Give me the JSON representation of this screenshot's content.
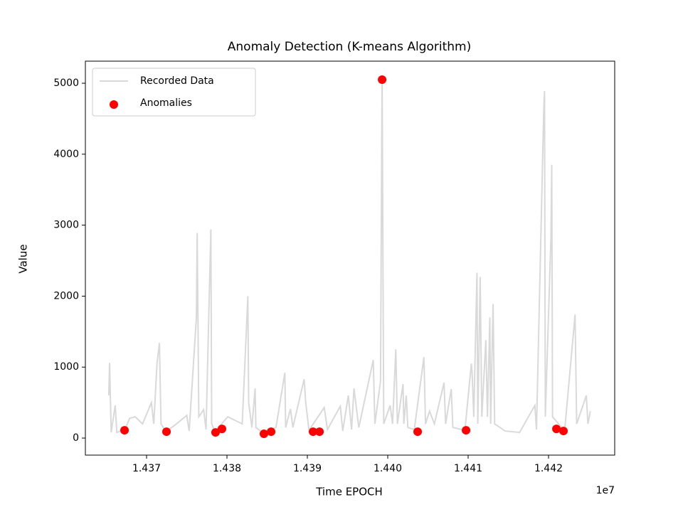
{
  "chart_data": {
    "type": "line",
    "title": "Anomaly Detection (K-means Algorithm)",
    "x_label": "Time EPOCH",
    "y_label": "Value",
    "x_offset_label": "1e7",
    "xlim": [
      14362390,
      14428230
    ],
    "ylim": [
      -240,
      5311
    ],
    "xticks": [
      {
        "value": 14370000,
        "label": "1.437"
      },
      {
        "value": 14380000,
        "label": "1.438"
      },
      {
        "value": 14390000,
        "label": "1.439"
      },
      {
        "value": 14400000,
        "label": "1.440"
      },
      {
        "value": 14410000,
        "label": "1.441"
      },
      {
        "value": 14420000,
        "label": "1.442"
      }
    ],
    "yticks": [
      0,
      1000,
      2000,
      3000,
      4000,
      5000
    ],
    "legend": "upper left",
    "grid": false,
    "series": [
      {
        "name": "Recorded Data",
        "type": "line",
        "color": "#d9d9d9",
        "x": [
          14365300,
          14365400,
          14365600,
          14366100,
          14366300,
          14367300,
          14367900,
          14368600,
          14369500,
          14370600,
          14370900,
          14371300,
          14371600,
          14371800,
          14372400,
          14373500,
          14375000,
          14375300,
          14376200,
          14376300,
          14376500,
          14377100,
          14377400,
          14378000,
          14378100,
          14378500,
          14380100,
          14381900,
          14382600,
          14382700,
          14383100,
          14383500,
          14383600,
          14384500,
          14386100,
          14387200,
          14387300,
          14387900,
          14388200,
          14389600,
          14389800,
          14390200,
          14392100,
          14392500,
          14394100,
          14394400,
          14395100,
          14395500,
          14395800,
          14396400,
          14398200,
          14398400,
          14399100,
          14399300,
          14399500,
          14400300,
          14400600,
          14401000,
          14401200,
          14401900,
          14402000,
          14402300,
          14402500,
          14403300,
          14404500,
          14404700,
          14405200,
          14405800,
          14407000,
          14407200,
          14407900,
          14408100,
          14409600,
          14410400,
          14410500,
          14410700,
          14411100,
          14411200,
          14411500,
          14411700,
          14412200,
          14412400,
          14412700,
          14412800,
          14413100,
          14413300,
          14414600,
          14416400,
          14418300,
          14418500,
          14419400,
          14419500,
          14419600,
          14420300,
          14420400,
          14420500,
          14422000,
          14423300,
          14423500,
          14424700,
          14424900,
          14425200
        ],
        "values": [
          600,
          1060,
          80,
          460,
          80,
          120,
          280,
          300,
          200,
          500,
          200,
          1050,
          1340,
          200,
          90,
          180,
          320,
          100,
          1700,
          2890,
          300,
          400,
          120,
          2940,
          200,
          90,
          300,
          200,
          2000,
          500,
          150,
          700,
          150,
          70,
          150,
          920,
          150,
          410,
          150,
          830,
          500,
          110,
          430,
          120,
          450,
          100,
          600,
          120,
          700,
          150,
          1100,
          200,
          800,
          5050,
          200,
          460,
          200,
          1250,
          200,
          760,
          200,
          600,
          150,
          120,
          1140,
          200,
          380,
          200,
          780,
          200,
          690,
          150,
          110,
          1050,
          900,
          300,
          2330,
          200,
          2270,
          300,
          1380,
          300,
          1700,
          200,
          1890,
          200,
          100,
          80,
          460,
          120,
          4600,
          4890,
          300,
          2820,
          3850,
          300,
          100,
          1740,
          200,
          600,
          200,
          380
        ]
      },
      {
        "name": "Anomalies",
        "type": "scatter",
        "color": "#ff0000",
        "x": [
          14367260,
          14372480,
          14378580,
          14379380,
          14384600,
          14385490,
          14390710,
          14391510,
          14399300,
          14403720,
          14409740,
          14420980,
          14421860
        ],
        "values": [
          110,
          90,
          80,
          130,
          60,
          90,
          90,
          90,
          5050,
          90,
          110,
          130,
          100
        ]
      }
    ]
  }
}
